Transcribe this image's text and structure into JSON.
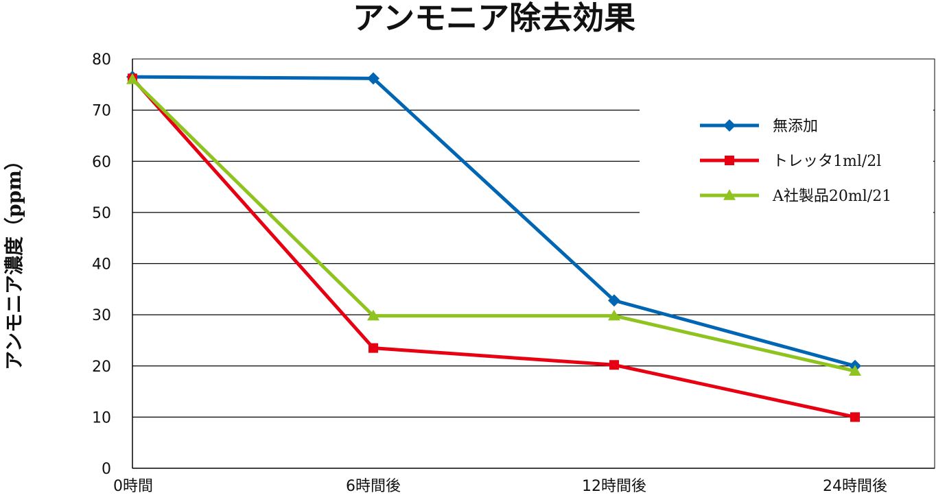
{
  "chart_data": {
    "type": "line",
    "title": "アンモニア除去効果",
    "ylabel": "アンモニア濃度（ppm）",
    "xlabel": "",
    "categories": [
      "0時間",
      "6時間後",
      "12時間後",
      "24時間後"
    ],
    "y_ticks": [
      "0",
      "10",
      "20",
      "30",
      "40",
      "50",
      "60",
      "70",
      "80"
    ],
    "ylim": [
      0,
      80
    ],
    "grid": "horizontal",
    "legend_position": "top-right",
    "series": [
      {
        "name": "無添加",
        "values": [
          76.5,
          76.2,
          32.8,
          20.0
        ],
        "color": "#0066b3",
        "marker": "diamond"
      },
      {
        "name": "トレッタ1ml/2l",
        "values": [
          76.2,
          23.5,
          20.2,
          10.0
        ],
        "color": "#e60012",
        "marker": "square"
      },
      {
        "name": "A社製品20ml/21",
        "values": [
          76.0,
          29.8,
          29.8,
          19.0
        ],
        "color": "#8fc31f",
        "marker": "triangle"
      }
    ]
  }
}
